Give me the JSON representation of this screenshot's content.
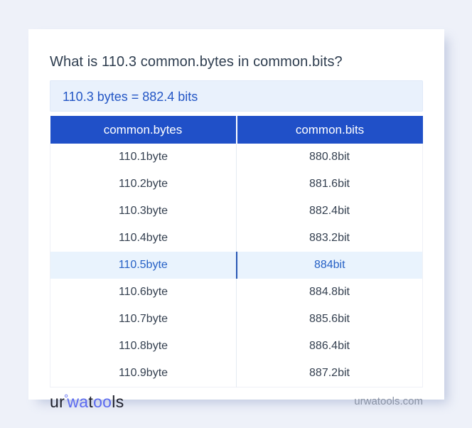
{
  "card": {
    "question": "What is 110.3 common.bytes in common.bits?",
    "result": "110.3 bytes = 882.4 bits"
  },
  "table": {
    "headers": [
      "common.bytes",
      "common.bits"
    ],
    "rows": [
      {
        "bytes": "110.1byte",
        "bits": "880.8bit",
        "highlighted": false
      },
      {
        "bytes": "110.2byte",
        "bits": "881.6bit",
        "highlighted": false
      },
      {
        "bytes": "110.3byte",
        "bits": "882.4bit",
        "highlighted": false
      },
      {
        "bytes": "110.4byte",
        "bits": "883.2bit",
        "highlighted": false
      },
      {
        "bytes": "110.5byte",
        "bits": "884bit",
        "highlighted": true
      },
      {
        "bytes": "110.6byte",
        "bits": "884.8bit",
        "highlighted": false
      },
      {
        "bytes": "110.7byte",
        "bits": "885.6bit",
        "highlighted": false
      },
      {
        "bytes": "110.8byte",
        "bits": "886.4bit",
        "highlighted": false
      },
      {
        "bytes": "110.9byte",
        "bits": "887.2bit",
        "highlighted": false
      }
    ]
  },
  "footer": {
    "logo_parts": [
      {
        "text": "ur",
        "tone": "dark"
      },
      {
        "text": "°",
        "tone": "ring"
      },
      {
        "text": "wa",
        "tone": "blue"
      },
      {
        "text": "t",
        "tone": "dark"
      },
      {
        "text": "oo",
        "tone": "blue"
      },
      {
        "text": "ls",
        "tone": "dark"
      }
    ],
    "site": "urwatools.com"
  },
  "colors": {
    "page_background": "#eef1f9",
    "header_blue": "#2050c8",
    "accent_blue": "#2356c5",
    "highlight_row_bg": "#e9f3fd",
    "result_box_bg": "#e9f1fc",
    "logo_blue": "#5b6af0",
    "body_text": "#333f4f",
    "muted_text": "#8a93a5"
  }
}
